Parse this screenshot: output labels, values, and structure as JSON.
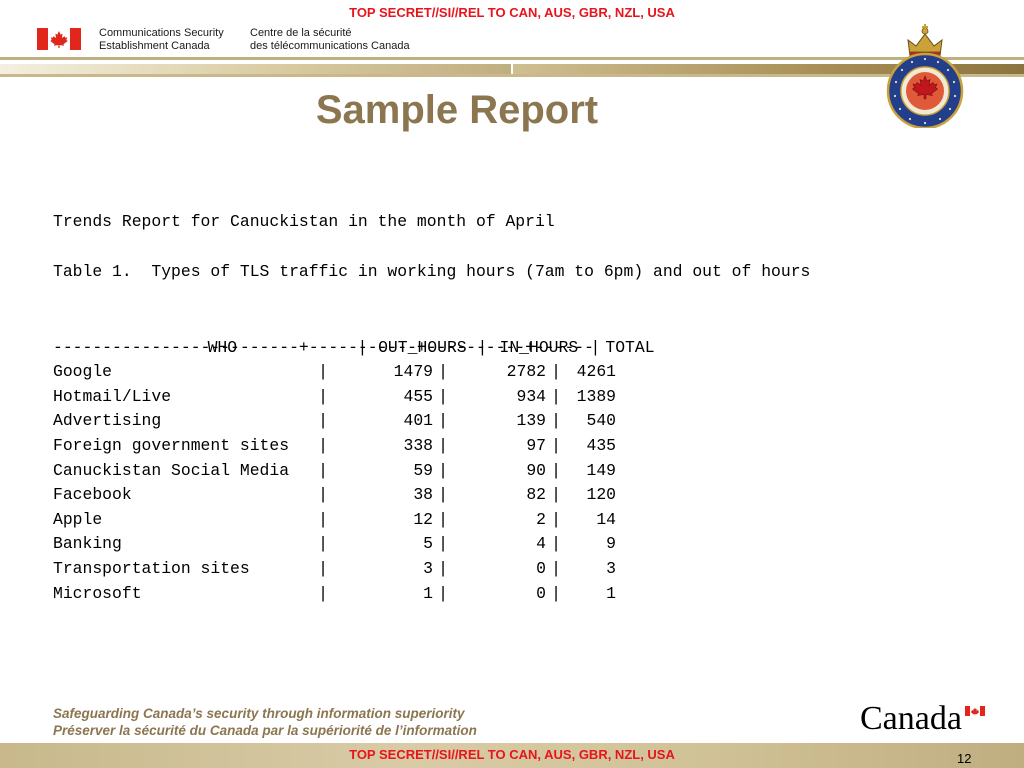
{
  "classification": {
    "top": "TOP SECRET//SI//REL TO CAN, AUS, GBR, NZL, USA",
    "bottom": "TOP SECRET//SI//REL TO CAN, AUS, GBR, NZL, USA",
    "color": "#e8141c"
  },
  "header": {
    "agency_en_line1": "Communications Security",
    "agency_en_line2": "Establishment Canada",
    "agency_fr_line1": "Centre de la sécurité",
    "agency_fr_line2": "des télécommunications Canada",
    "flag_icon": "canada-flag-icon",
    "crest_icon": "cse-crest-icon",
    "crest_motto": "CANADA · COMMUNICATIONS SECURITY ESTABLISHMENT",
    "accent_color": "#bfae80"
  },
  "slide": {
    "title": "Sample Report",
    "title_color": "#8b7650"
  },
  "report": {
    "intro": "Trends Report for Canuckistan in the month of April",
    "caption": "Table 1.  Types of TLS traffic in working hours (7am to 6pm) and out of hours",
    "columns": [
      "WHO",
      "OUT_HOURS",
      "IN_HOURS",
      "TOTAL"
    ],
    "separator_line": "-------------------------+-----------+----------+------",
    "rows": [
      {
        "who": "Google",
        "out": "1479",
        "in": "2782",
        "total": "4261"
      },
      {
        "who": "Hotmail/Live",
        "out": "455",
        "in": "934",
        "total": "1389"
      },
      {
        "who": "Advertising",
        "out": "401",
        "in": "139",
        "total": "540"
      },
      {
        "who": "Foreign government sites",
        "out": "338",
        "in": "97",
        "total": "435"
      },
      {
        "who": "Canuckistan Social Media",
        "out": "59",
        "in": "90",
        "total": "149"
      },
      {
        "who": "Facebook",
        "out": "38",
        "in": "82",
        "total": "120"
      },
      {
        "who": "Apple",
        "out": "12",
        "in": "2",
        "total": "14"
      },
      {
        "who": "Banking",
        "out": "5",
        "in": "4",
        "total": "9"
      },
      {
        "who": "Transportation sites",
        "out": "3",
        "in": "0",
        "total": "3"
      },
      {
        "who": "Microsoft",
        "out": "1",
        "in": "0",
        "total": "1"
      }
    ]
  },
  "footer": {
    "tagline_en": "Safeguarding Canada’s security through information superiority",
    "tagline_fr": "Préserver la sécurité du Canada par la supériorité de l’information",
    "wordmark": "Canada",
    "wordmark_icon": "canada-wordmark-flag-icon",
    "page_number": "12"
  }
}
